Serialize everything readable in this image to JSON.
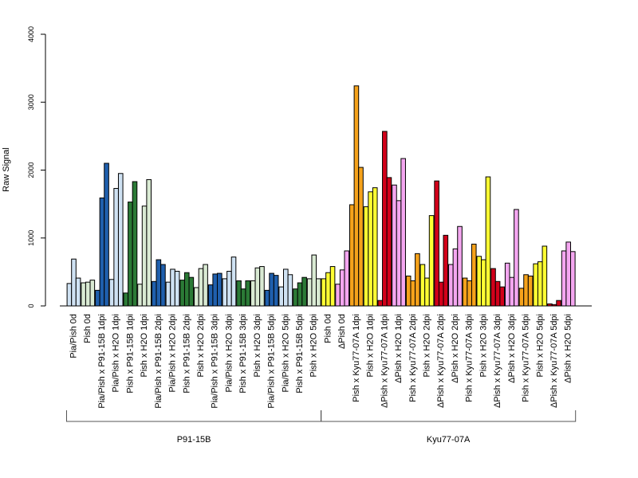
{
  "chart_data": {
    "type": "bar",
    "xlabel": "",
    "ylabel": "Raw Signal",
    "ylim": [
      0,
      4000
    ],
    "yticks": [
      0,
      1000,
      2000,
      3000,
      4000
    ],
    "bar_outline": "#000000",
    "categories": [
      "Pia/Pish 0d",
      "Pish 0d",
      "Pia/Pish x P91-15B 1dpi",
      "Pia/Pish x H2O 1dpi",
      "Pish x P91-15B 1dpi",
      "Pish x H2O 1dpi",
      "Pia/Pish x P91-15B 2dpi",
      "Pia/Pish x H2O 2dpi",
      "Pish x P91-15B 2dpi",
      "Pish x H2O 2dpi",
      "Pia/Pish x P91-15B 3dpi",
      "Pia/Pish x H2O 3dpi",
      "Pish x P91-15B 3dpi",
      "Pish x H2O 3dpi",
      "Pia/Pish x P91-15B 5dpi",
      "Pia/Pish x H2O 5dpi",
      "Pish x P91-15B 5dpi",
      "Pish x H2O 5dpi",
      "Pish 0d",
      "ΔPish 0d",
      "Pish x Kyu77-07A 1dpi",
      "Pish x H2O 1dpi",
      "ΔPish x Kyu77-07A 1dpi",
      "ΔPish x H2O 1dpi",
      "Pish x Kyu77-07A 2dpi",
      "Pish x H2O 2dpi",
      "ΔPish x Kyu77-07A 2dpi",
      "ΔPish x H2O 2dpi",
      "Pish x Kyu77-07A 3dpi",
      "Pish x H2O 3dpi",
      "ΔPish x Kyu77-07A 3dpi",
      "ΔPish x H2O 3dpi",
      "Pish x Kyu77-07A 5dpi",
      "Pish x H2O 5dpi",
      "ΔPish x Kyu77-07A 5dpi",
      "ΔPish x H2O 5dpi"
    ],
    "bars": [
      {
        "color": "#cfe2f3",
        "values": [
          330,
          690,
          410
        ]
      },
      {
        "color": "#d9ead3",
        "values": [
          340,
          350,
          380
        ]
      },
      {
        "color": "#1f5fad",
        "values": [
          230,
          1590,
          2100
        ]
      },
      {
        "color": "#cfe2f3",
        "values": [
          390,
          1730,
          1950
        ]
      },
      {
        "color": "#2b7a36",
        "values": [
          190,
          1530,
          1830
        ]
      },
      {
        "color": "#d9ead3",
        "values": [
          320,
          1470,
          1860
        ]
      },
      {
        "color": "#1f5fad",
        "values": [
          360,
          680,
          610
        ]
      },
      {
        "color": "#cfe2f3",
        "values": [
          350,
          540,
          510
        ]
      },
      {
        "color": "#2b7a36",
        "values": [
          380,
          490,
          420
        ]
      },
      {
        "color": "#d9ead3",
        "values": [
          270,
          550,
          610
        ]
      },
      {
        "color": "#1f5fad",
        "values": [
          310,
          470,
          480
        ]
      },
      {
        "color": "#cfe2f3",
        "values": [
          400,
          510,
          720
        ]
      },
      {
        "color": "#2b7a36",
        "values": [
          370,
          250,
          370
        ]
      },
      {
        "color": "#d9ead3",
        "values": [
          370,
          560,
          580
        ]
      },
      {
        "color": "#1f5fad",
        "values": [
          230,
          480,
          450
        ]
      },
      {
        "color": "#cfe2f3",
        "values": [
          280,
          540,
          460
        ]
      },
      {
        "color": "#2b7a36",
        "values": [
          250,
          340,
          420
        ]
      },
      {
        "color": "#d9ead3",
        "values": [
          400,
          750,
          400
        ]
      },
      {
        "color": "#ffff33",
        "values": [
          400,
          490,
          580
        ]
      },
      {
        "color": "#f4a6f0",
        "values": [
          320,
          530,
          810
        ]
      },
      {
        "color": "#f5a21b",
        "values": [
          1490,
          3240,
          2040
        ]
      },
      {
        "color": "#ffff33",
        "values": [
          1460,
          1680,
          1740
        ]
      },
      {
        "color": "#d2001a",
        "values": [
          80,
          2570,
          1890
        ]
      },
      {
        "color": "#f4a6f0",
        "values": [
          1780,
          1550,
          2170
        ]
      },
      {
        "color": "#f5a21b",
        "values": [
          440,
          370,
          770
        ]
      },
      {
        "color": "#ffff33",
        "values": [
          610,
          410,
          1330
        ]
      },
      {
        "color": "#d2001a",
        "values": [
          1840,
          350,
          1040
        ]
      },
      {
        "color": "#f4a6f0",
        "values": [
          610,
          840,
          1170
        ]
      },
      {
        "color": "#f5a21b",
        "values": [
          410,
          370,
          910
        ]
      },
      {
        "color": "#ffff33",
        "values": [
          730,
          680,
          1900
        ]
      },
      {
        "color": "#d2001a",
        "values": [
          550,
          360,
          280
        ]
      },
      {
        "color": "#f4a6f0",
        "values": [
          630,
          420,
          1420
        ]
      },
      {
        "color": "#f5a21b",
        "values": [
          260,
          460,
          440
        ]
      },
      {
        "color": "#ffff33",
        "values": [
          620,
          650,
          880
        ]
      },
      {
        "color": "#d2001a",
        "values": [
          30,
          20,
          80
        ]
      },
      {
        "color": "#f4a6f0",
        "values": [
          810,
          940,
          800
        ]
      }
    ],
    "groups": [
      {
        "label": "P91-15B",
        "from": 0,
        "to": 17
      },
      {
        "label": "Kyu77-07A",
        "from": 18,
        "to": 35
      }
    ]
  }
}
